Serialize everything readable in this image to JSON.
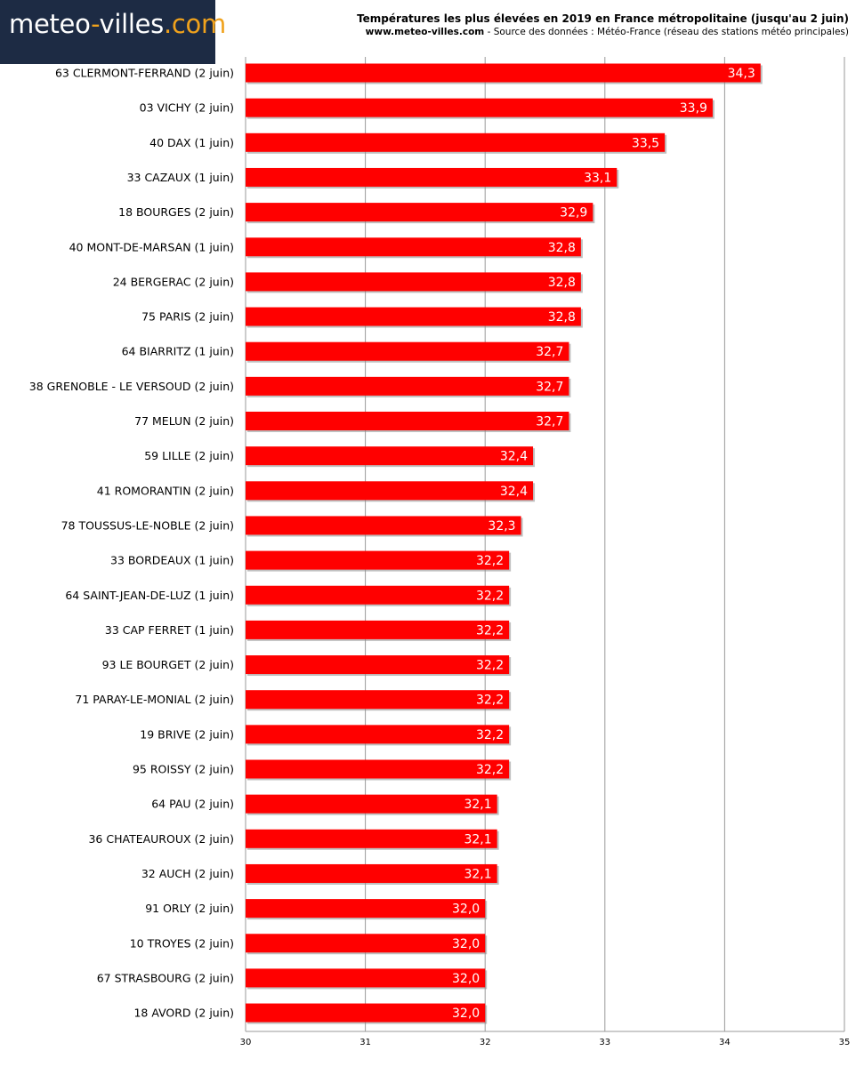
{
  "logo": {
    "part1": "meteo",
    "dash": "-",
    "part2": "villes",
    "part3": ".com"
  },
  "header": {
    "title": "Températures les plus élevées en 2019 en France métropolitaine (jusqu'au 2 juin)",
    "site": "www.meteo-villes.com",
    "source": " - Source des données : Météo-France (réseau des stations météo principales)"
  },
  "colors": {
    "bar": "#ff0000",
    "bar_shadow": "#8a8a8a",
    "grid": "#9a9a9a",
    "logo_bg": "#1d2b44",
    "logo_accent": "#f0a21c"
  },
  "chart_data": {
    "type": "bar",
    "orientation": "horizontal",
    "categories": [
      "63 CLERMONT-FERRAND (2 juin)",
      "03 VICHY (2 juin)",
      "40 DAX (1 juin)",
      "33 CAZAUX (1 juin)",
      "18 BOURGES (2 juin)",
      "40 MONT-DE-MARSAN (1 juin)",
      "24 BERGERAC (2 juin)",
      "75 PARIS (2 juin)",
      "64 BIARRITZ (1 juin)",
      "38 GRENOBLE - LE VERSOUD (2 juin)",
      "77 MELUN (2 juin)",
      "59 LILLE (2 juin)",
      "41 ROMORANTIN (2 juin)",
      "78 TOUSSUS-LE-NOBLE (2 juin)",
      "33 BORDEAUX (1 juin)",
      "64 SAINT-JEAN-DE-LUZ (1 juin)",
      "33 CAP FERRET (1 juin)",
      "93 LE BOURGET (2 juin)",
      "71 PARAY-LE-MONIAL (2 juin)",
      "19 BRIVE (2 juin)",
      "95 ROISSY (2 juin)",
      "64 PAU (2 juin)",
      "36 CHATEAUROUX (2 juin)",
      "32 AUCH (2 juin)",
      "91 ORLY (2 juin)",
      "10 TROYES (2 juin)",
      "67 STRASBOURG (2 juin)",
      "18 AVORD (2 juin)"
    ],
    "values": [
      34.3,
      33.9,
      33.5,
      33.1,
      32.9,
      32.8,
      32.8,
      32.8,
      32.7,
      32.7,
      32.7,
      32.4,
      32.4,
      32.3,
      32.2,
      32.2,
      32.2,
      32.2,
      32.2,
      32.2,
      32.2,
      32.1,
      32.1,
      32.1,
      32.0,
      32.0,
      32.0,
      32.0
    ],
    "value_labels": [
      "34,3",
      "33,9",
      "33,5",
      "33,1",
      "32,9",
      "32,8",
      "32,8",
      "32,8",
      "32,7",
      "32,7",
      "32,7",
      "32,4",
      "32,4",
      "32,3",
      "32,2",
      "32,2",
      "32,2",
      "32,2",
      "32,2",
      "32,2",
      "32,2",
      "32,1",
      "32,1",
      "32,1",
      "32,0",
      "32,0",
      "32,0",
      "32,0"
    ],
    "xlim": [
      30,
      35
    ],
    "xticks": [
      "30",
      "31",
      "32",
      "33",
      "34",
      "35"
    ],
    "grid": true,
    "legend": false
  }
}
